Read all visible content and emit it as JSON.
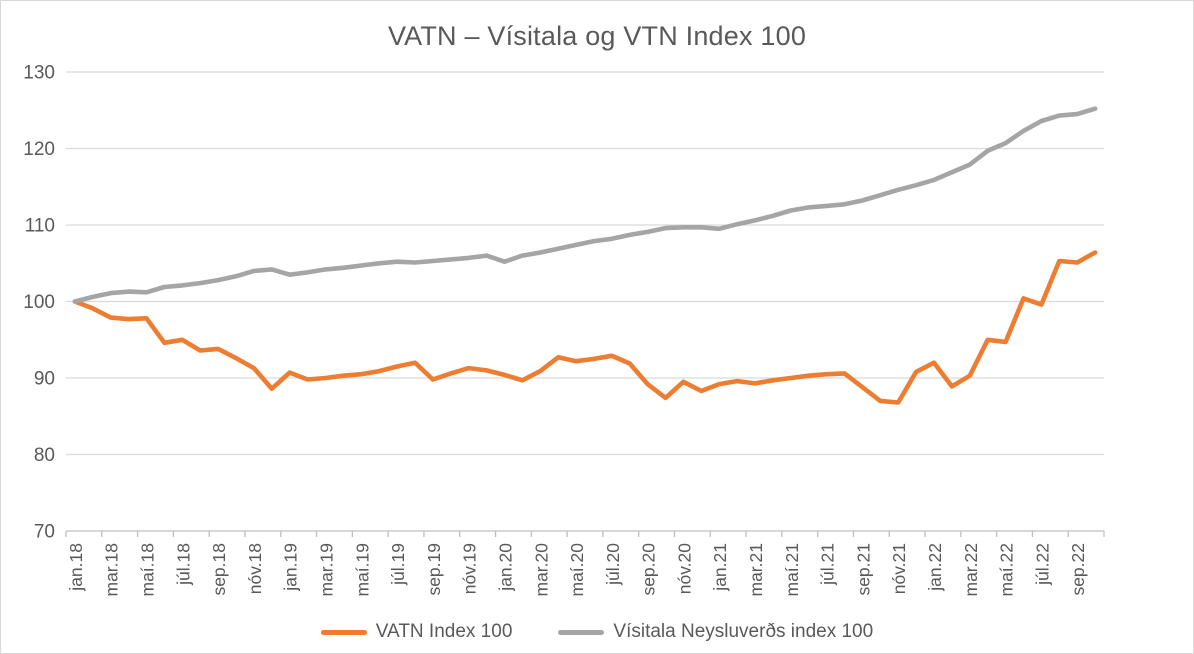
{
  "title": "VATN – Vísitala og VTN Index 100",
  "colors": {
    "vatn_line": "#ED7D31",
    "cpi_line": "#A5A5A5",
    "gridline": "#D9D9D9",
    "axis_line": "#BFBFBF",
    "tick_mark": "#BFBFBF",
    "axis_text": "#595959",
    "title_text": "#595959",
    "frame_border": "#D9D9D9",
    "background": "#FFFFFF"
  },
  "chart_data": {
    "type": "line",
    "title": "VATN – Vísitala og VTN Index 100",
    "xlabel": "",
    "ylabel": "",
    "ylim": [
      70,
      130
    ],
    "y_ticks": [
      70,
      80,
      90,
      100,
      110,
      120,
      130
    ],
    "grid": "horizontal",
    "legend_position": "bottom-center",
    "x_tick_labels_shown": [
      "jan.18",
      "mar.18",
      "maí.18",
      "júl.18",
      "sep.18",
      "nóv.18",
      "jan.19",
      "mar.19",
      "maí.19",
      "júl.19",
      "sep.19",
      "nóv.19",
      "jan.20",
      "mar.20",
      "maí.20",
      "júl.20",
      "sep.20",
      "nóv.20",
      "jan.21",
      "mar.21",
      "maí.21",
      "júl.21",
      "sep.21",
      "nóv.21",
      "jan.22",
      "mar.22",
      "maí.22",
      "júl.22",
      "sep.22"
    ],
    "x": [
      "jan.18",
      "feb.18",
      "mar.18",
      "apr.18",
      "maí.18",
      "jún.18",
      "júl.18",
      "ágú.18",
      "sep.18",
      "okt.18",
      "nóv.18",
      "des.18",
      "jan.19",
      "feb.19",
      "mar.19",
      "apr.19",
      "maí.19",
      "jún.19",
      "júl.19",
      "ágú.19",
      "sep.19",
      "okt.19",
      "nóv.19",
      "des.19",
      "jan.20",
      "feb.20",
      "mar.20",
      "apr.20",
      "maí.20",
      "jún.20",
      "júl.20",
      "ágú.20",
      "sep.20",
      "okt.20",
      "nóv.20",
      "des.20",
      "jan.21",
      "feb.21",
      "mar.21",
      "apr.21",
      "maí.21",
      "jún.21",
      "júl.21",
      "ágú.21",
      "sep.21",
      "okt.21",
      "nóv.21",
      "des.21",
      "jan.22",
      "feb.22",
      "mar.22",
      "apr.22",
      "maí.22",
      "jún.22",
      "júl.22",
      "ágú.22",
      "sep.22",
      "okt.22"
    ],
    "series": [
      {
        "name": "VATN Index 100",
        "color": "#ED7D31",
        "values": [
          100.0,
          99.1,
          97.9,
          97.7,
          97.8,
          94.6,
          95.0,
          93.6,
          93.8,
          92.6,
          91.3,
          88.6,
          90.7,
          89.8,
          90.0,
          90.3,
          90.5,
          90.9,
          91.5,
          92.0,
          89.8,
          90.6,
          91.3,
          91.0,
          90.4,
          89.7,
          90.9,
          92.7,
          92.2,
          92.5,
          92.9,
          91.9,
          89.2,
          87.4,
          89.5,
          88.3,
          89.2,
          89.6,
          89.3,
          89.7,
          90.0,
          90.3,
          90.5,
          90.6,
          88.8,
          87.0,
          86.8,
          90.8,
          92.0,
          88.9,
          90.3,
          95.0,
          94.7,
          100.4,
          99.6,
          105.3,
          105.1,
          106.4
        ]
      },
      {
        "name": "Vísitala Neysluverðs index 100",
        "color": "#A5A5A5",
        "values": [
          100.0,
          100.6,
          101.1,
          101.3,
          101.2,
          101.9,
          102.1,
          102.4,
          102.8,
          103.3,
          104.0,
          104.2,
          103.5,
          103.8,
          104.2,
          104.4,
          104.7,
          105.0,
          105.2,
          105.1,
          105.3,
          105.5,
          105.7,
          106.0,
          105.2,
          106.0,
          106.4,
          106.9,
          107.4,
          107.9,
          108.2,
          108.7,
          109.1,
          109.6,
          109.7,
          109.7,
          109.5,
          110.1,
          110.6,
          111.2,
          111.9,
          112.3,
          112.5,
          112.7,
          113.2,
          113.9,
          114.6,
          115.2,
          115.9,
          116.9,
          117.9,
          119.7,
          120.7,
          122.3,
          123.6,
          124.3,
          124.5,
          125.2
        ]
      }
    ]
  }
}
